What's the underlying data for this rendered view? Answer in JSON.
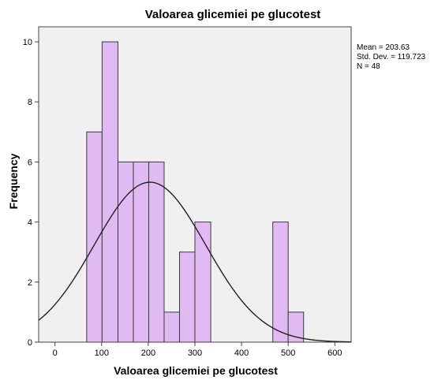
{
  "chart_data": {
    "type": "bar",
    "subtype": "histogram",
    "title": "Valoarea glicemiei pe glucotest",
    "xlabel": "Valoarea glicemiei pe glucotest",
    "ylabel": "Frequency",
    "xlim": [
      -35,
      635
    ],
    "ylim": [
      0,
      10.5
    ],
    "xticks": [
      0,
      100,
      200,
      300,
      400,
      500,
      600
    ],
    "yticks": [
      0,
      2,
      4,
      6,
      8,
      10
    ],
    "grid": false,
    "bins": [
      {
        "start": 68,
        "end": 101,
        "count": 7
      },
      {
        "start": 101,
        "end": 135,
        "count": 10
      },
      {
        "start": 135,
        "end": 168,
        "count": 6
      },
      {
        "start": 168,
        "end": 201,
        "count": 6
      },
      {
        "start": 201,
        "end": 234,
        "count": 6
      },
      {
        "start": 234,
        "end": 267,
        "count": 1
      },
      {
        "start": 267,
        "end": 300,
        "count": 3
      },
      {
        "start": 300,
        "end": 334,
        "count": 4
      },
      {
        "start": 467,
        "end": 500,
        "count": 4
      },
      {
        "start": 500,
        "end": 533,
        "count": 1
      }
    ],
    "normal_curve": {
      "mean": 203.63,
      "sd": 119.723,
      "n": 48,
      "bin_width": 33.3
    },
    "stats_text": [
      "Mean = 203.63",
      "Std. Dev. = 119.723",
      "N = 48"
    ],
    "colors": {
      "bar_fill": "#e2baf3",
      "bar_stroke": "#3a3a3a",
      "plot_bg": "#f0f0f0",
      "curve": "#222222"
    }
  }
}
